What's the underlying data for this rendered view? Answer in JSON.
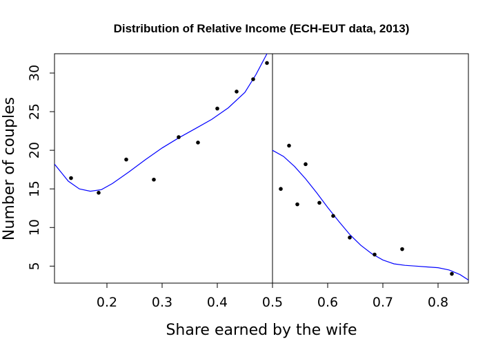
{
  "chart_data": {
    "type": "scatter",
    "title": "Distribution of Relative Income (ECH-EUT data, 2013)",
    "xlabel": "Share earned by the wife",
    "ylabel": "Number of couples",
    "xlim": [
      0.105,
      0.855
    ],
    "ylim": [
      2.8,
      32.5
    ],
    "xticks": [
      "0.2",
      "0.3",
      "0.4",
      "0.5",
      "0.6",
      "0.7",
      "0.8"
    ],
    "yticks": [
      "5",
      "10",
      "15",
      "20",
      "25",
      "30"
    ],
    "vline_x": 0.5,
    "grid": false,
    "colors": {
      "points": "#000000",
      "fit_line": "#0000ff",
      "axes": "#000000"
    },
    "series": [
      {
        "type": "scatter",
        "x": [
          0.135,
          0.185,
          0.235,
          0.285,
          0.33,
          0.365,
          0.4,
          0.435,
          0.465,
          0.49,
          0.515,
          0.53,
          0.545,
          0.56,
          0.585,
          0.61,
          0.64,
          0.685,
          0.735,
          0.825
        ],
        "y": [
          16.4,
          14.5,
          18.8,
          16.2,
          21.7,
          21.0,
          25.4,
          27.6,
          29.2,
          31.3,
          15.0,
          20.6,
          13.0,
          18.2,
          13.2,
          11.5,
          8.7,
          6.5,
          7.2,
          4.0
        ]
      },
      {
        "type": "line",
        "x": [
          0.105,
          0.13,
          0.15,
          0.17,
          0.19,
          0.21,
          0.24,
          0.27,
          0.3,
          0.33,
          0.36,
          0.39,
          0.42,
          0.45,
          0.47,
          0.49
        ],
        "y": [
          18.2,
          16.0,
          15.0,
          14.7,
          14.9,
          15.7,
          17.2,
          18.8,
          20.3,
          21.6,
          22.8,
          24.0,
          25.5,
          27.5,
          29.8,
          32.5
        ]
      },
      {
        "type": "line",
        "x": [
          0.5,
          0.52,
          0.54,
          0.56,
          0.58,
          0.6,
          0.62,
          0.64,
          0.66,
          0.68,
          0.7,
          0.72,
          0.74,
          0.76,
          0.78,
          0.8,
          0.82,
          0.84,
          0.855
        ],
        "y": [
          20.0,
          19.2,
          17.9,
          16.3,
          14.5,
          12.6,
          10.8,
          9.1,
          7.7,
          6.6,
          5.8,
          5.3,
          5.1,
          5.0,
          4.9,
          4.8,
          4.5,
          3.9,
          3.2
        ]
      }
    ]
  }
}
